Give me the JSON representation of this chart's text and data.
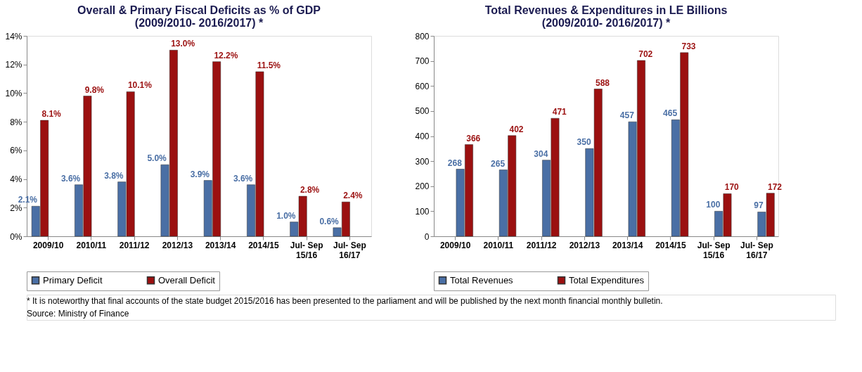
{
  "chart_data": [
    {
      "type": "bar",
      "title": "Overall & Primary Fiscal Deficits as % of GDP\n(2009/2010- 2016/2017) *",
      "categories": [
        "2009/10",
        "2010/11",
        "2011/12",
        "2012/13",
        "2013/14",
        "2014/15",
        "Jul- Sep\n15/16",
        "Jul- Sep\n16/17"
      ],
      "series": [
        {
          "name": "Primary Deficit",
          "color": "#4a6fa5",
          "values": [
            2.1,
            3.6,
            3.8,
            5.0,
            3.9,
            3.6,
            1.0,
            0.6
          ],
          "value_labels": [
            "2.1%",
            "3.6%",
            "3.8%",
            "5.0%",
            "3.9%",
            "3.6%",
            "1.0%",
            "0.6%"
          ]
        },
        {
          "name": "Overall Deficit",
          "color": "#9b1010",
          "values": [
            8.1,
            9.8,
            10.1,
            13.0,
            12.2,
            11.5,
            2.8,
            2.4
          ],
          "value_labels": [
            "8.1%",
            "9.8%",
            "10.1%",
            "13.0%",
            "12.2%",
            "11.5%",
            "2.8%",
            "2.4%"
          ]
        }
      ],
      "ylim": [
        0,
        14
      ],
      "yticks": [
        {
          "value": 0,
          "label": "0%"
        },
        {
          "value": 2,
          "label": "2%"
        },
        {
          "value": 4,
          "label": "4%"
        },
        {
          "value": 6,
          "label": "6%"
        },
        {
          "value": 8,
          "label": "8%"
        },
        {
          "value": 10,
          "label": "10%"
        },
        {
          "value": 12,
          "label": "12%"
        },
        {
          "value": 14,
          "label": "14%"
        }
      ],
      "grid": false,
      "legend": "bottom",
      "annotations": [
        "* It is noteworthy that final accounts of the state budget 2015/2016 has been presented to the parliament and will be published by the next month financial monthly bulletin.",
        "Source: Ministry of Finance"
      ]
    },
    {
      "type": "bar",
      "title": "Total Revenues & Expenditures  in LE Billions\n(2009/2010- 2016/2017) *",
      "categories": [
        "2009/10",
        "2010/11",
        "2011/12",
        "2012/13",
        "2013/14",
        "2014/15",
        "Jul- Sep\n15/16",
        "Jul- Sep\n16/17"
      ],
      "series": [
        {
          "name": "Total Revenues",
          "color": "#4a6fa5",
          "values": [
            268,
            265,
            304,
            350,
            457,
            465,
            100,
            97
          ]
        },
        {
          "name": "Total Expenditures",
          "color": "#9b1010",
          "values": [
            366,
            402,
            471,
            588,
            702,
            733,
            170,
            172
          ]
        }
      ],
      "ylim": [
        0,
        800
      ],
      "yticks": [
        0,
        100,
        200,
        300,
        400,
        500,
        600,
        700,
        800
      ],
      "grid": false,
      "legend": "bottom",
      "data_labels": true
    }
  ]
}
